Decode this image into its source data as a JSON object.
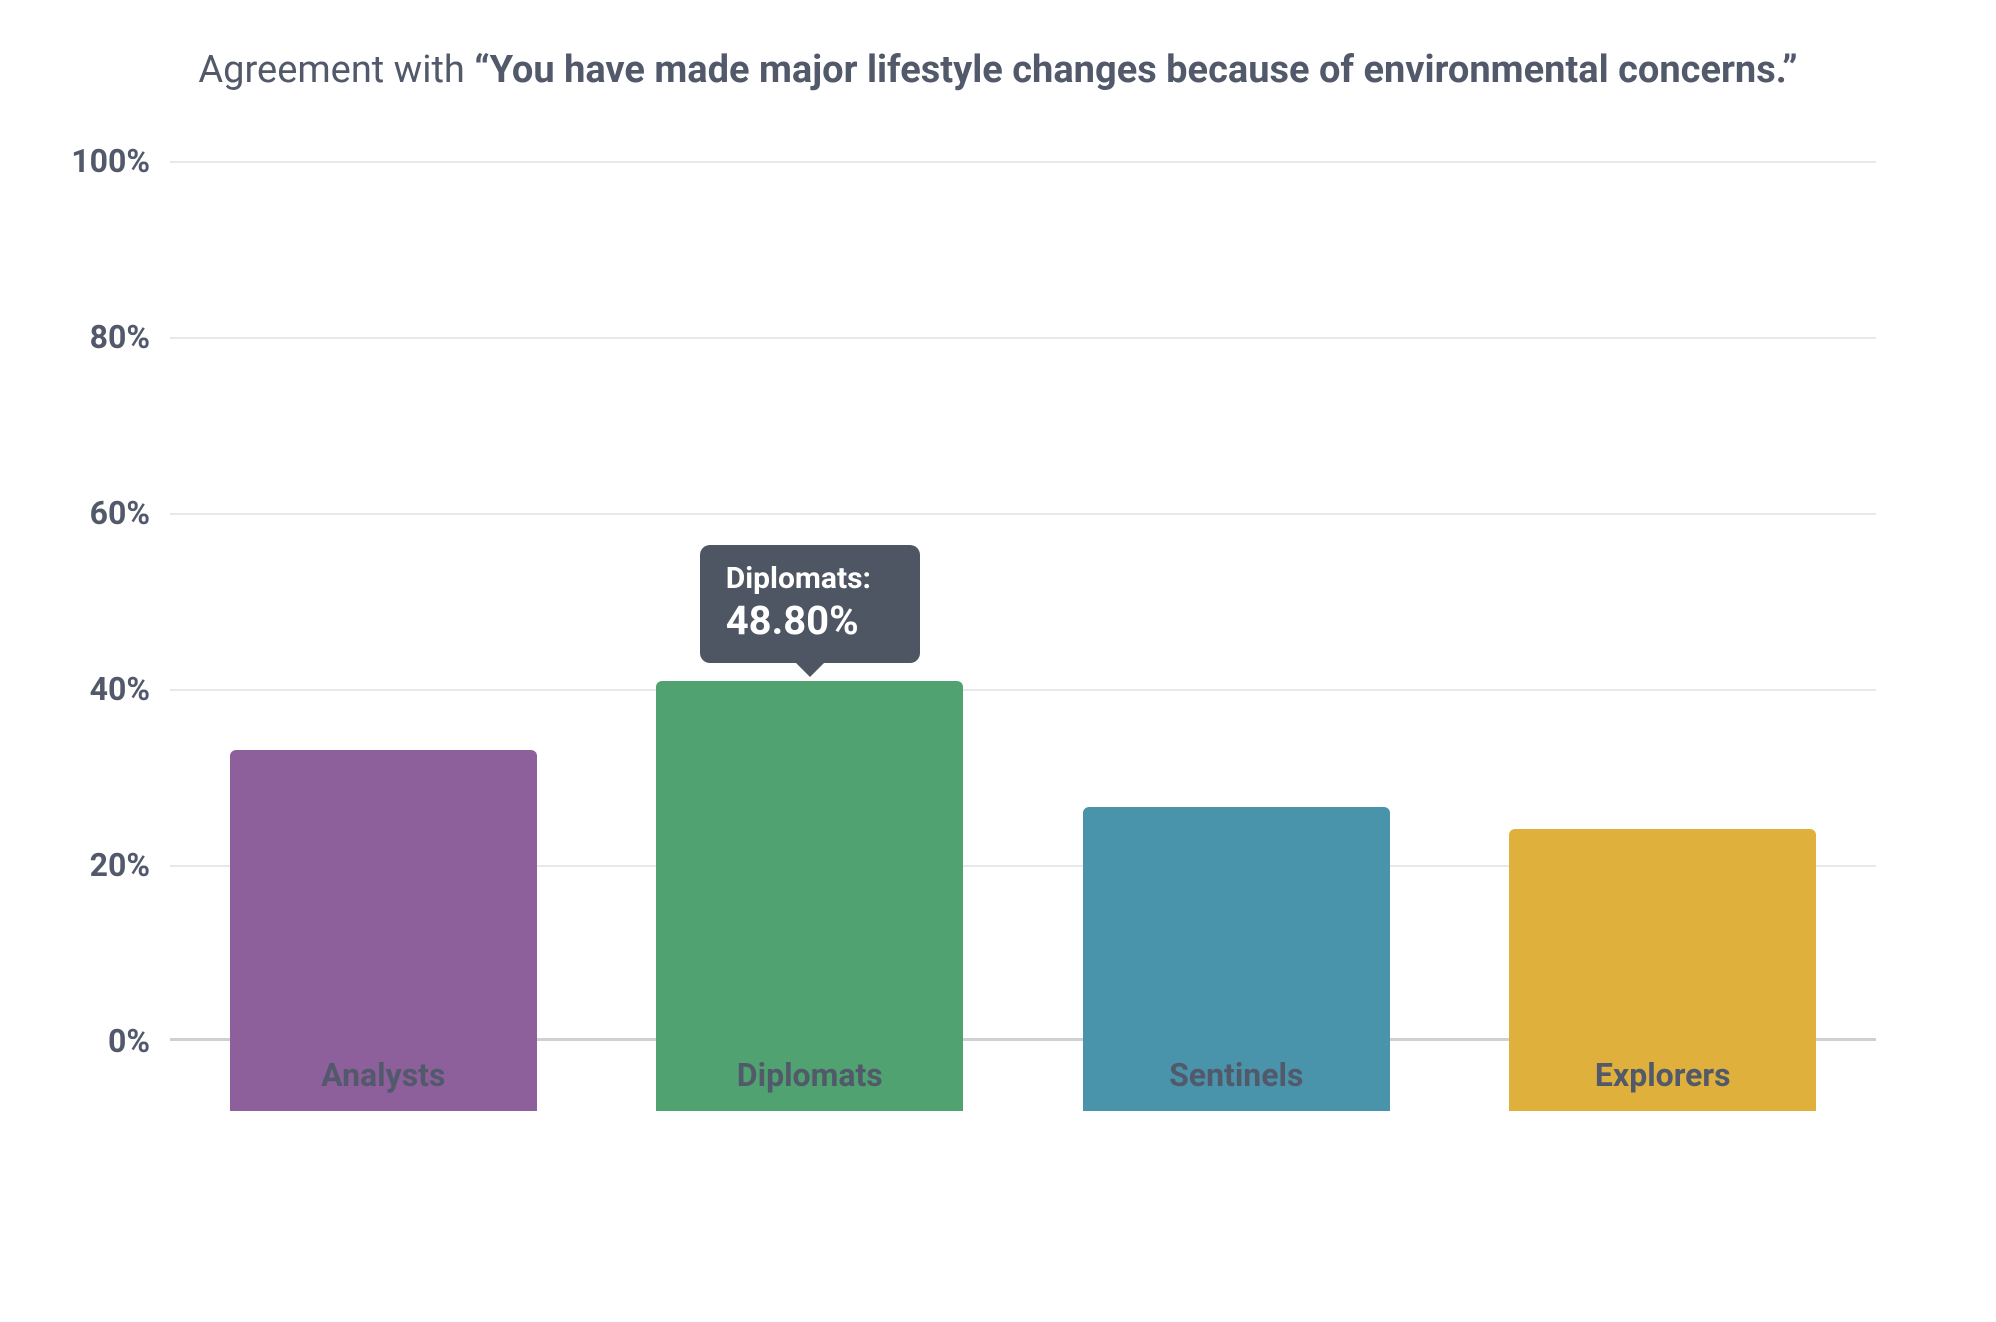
{
  "chart": {
    "type": "bar",
    "title_prefix": "Agreement with ",
    "title_bold": "“You have made major lifestyle changes because of environmental concerns.”",
    "title_color": "#51596b",
    "title_fontsize": 38,
    "background_color": "#ffffff",
    "grid_color": "#e8e8e8",
    "baseline_color": "#cfd0d4",
    "ylim": [
      0,
      100
    ],
    "ytick_step": 20,
    "y_tick_labels": [
      "0%",
      "20%",
      "40%",
      "60%",
      "80%",
      "100%"
    ],
    "y_label_color": "#51596b",
    "y_label_fontsize": 32,
    "x_label_color": "#51596b",
    "x_label_fontsize": 32,
    "bar_width_pct": 72,
    "bar_border_radius": 6,
    "categories": [
      "Analysts",
      "Diplomats",
      "Sentinels",
      "Explorers"
    ],
    "values": [
      41.0,
      48.8,
      34.5,
      32.0
    ],
    "bar_colors": [
      "#8d609c",
      "#50a271",
      "#4a94ab",
      "#dfb03b"
    ],
    "tooltip": {
      "index": 1,
      "label": "Diplomats:",
      "value": "48.80%",
      "bg_color": "#4e5664",
      "text_color": "#ffffff",
      "label_fontsize": 30,
      "value_fontsize": 40
    }
  }
}
